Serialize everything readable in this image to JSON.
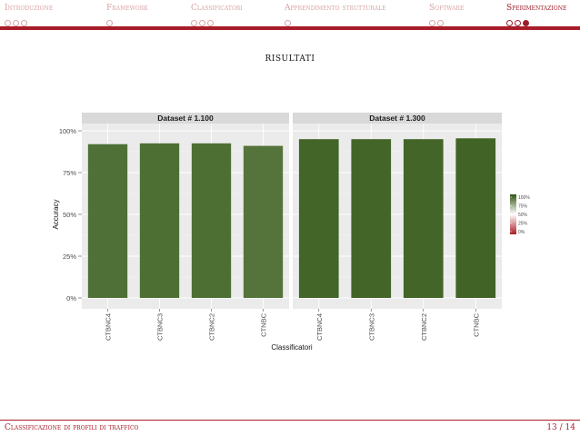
{
  "nav": {
    "sections": [
      {
        "label": "Introduzione",
        "dots": 3,
        "active": false,
        "current_dot": null
      },
      {
        "label": "Framework",
        "dots": 1,
        "active": false,
        "current_dot": null
      },
      {
        "label": "Classificatori",
        "dots": 3,
        "active": false,
        "current_dot": null
      },
      {
        "label": "Apprendimento strutturale",
        "dots": 1,
        "active": false,
        "current_dot": null
      },
      {
        "label": "Software",
        "dots": 2,
        "active": false,
        "current_dot": null
      },
      {
        "label": "Sperimentazione",
        "dots": 3,
        "active": true,
        "current_dot": 2
      }
    ]
  },
  "frame_title": "risultati",
  "footer": {
    "left": "Classificazione di profili di traffico",
    "right": "13 / 14"
  },
  "colors": {
    "accent": "#a81c28",
    "panel_bg": "#ebebeb",
    "strip_bg": "#d9d9d9"
  },
  "chart_data": {
    "type": "bar",
    "title": "",
    "xlabel": "Classificatori",
    "ylabel": "Accuracy",
    "ylim": [
      0,
      100
    ],
    "y_ticks": [
      "0%",
      "25%",
      "50%",
      "75%",
      "100%"
    ],
    "y_tick_values": [
      0,
      25,
      50,
      75,
      100
    ],
    "categories": [
      "CTBNC4",
      "CTBNC3",
      "CTBNC2",
      "CTNBC"
    ],
    "facets": [
      {
        "name": "Dataset # 1.100",
        "values": [
          92,
          92.5,
          92.5,
          91
        ]
      },
      {
        "name": "Dataset # 1.300",
        "values": [
          95,
          95,
          95,
          95.5
        ]
      }
    ],
    "legend": {
      "position": "right",
      "labels": [
        "100%",
        "75%",
        "50%",
        "25%",
        "0%"
      ],
      "gradient": [
        "#2e5510",
        "#ffffff",
        "#a81c28"
      ]
    },
    "grid": true
  }
}
